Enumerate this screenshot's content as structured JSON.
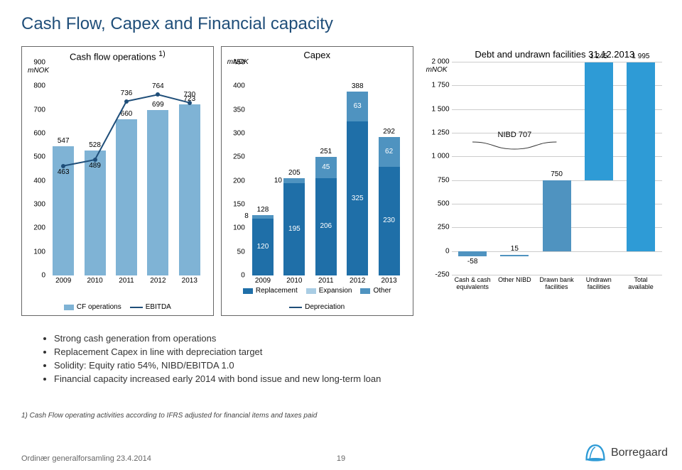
{
  "title": "Cash Flow, Capex and Financial capacity",
  "chart1": {
    "title": "Cash flow operations",
    "title_sup": "1)",
    "unit": "mNOK",
    "type": "bar+line",
    "ylim": [
      0,
      900
    ],
    "ytick_step": 100,
    "categories": [
      "2009",
      "2010",
      "2011",
      "2012",
      "2013"
    ],
    "bars": {
      "label": "CF operations",
      "color": "#7fb3d5",
      "values": [
        547,
        528,
        660,
        699,
        723
      ]
    },
    "line": {
      "label": "EBITDA",
      "color": "#1f4e79",
      "values": [
        463,
        489,
        736,
        764,
        730
      ]
    }
  },
  "chart2": {
    "title": "Capex",
    "unit": "mNOK",
    "type": "stacked-bar+line",
    "ylim": [
      0,
      450
    ],
    "ytick_step": 50,
    "categories": [
      "2009",
      "2010",
      "2011",
      "2012",
      "2013"
    ],
    "series": [
      {
        "label": "Replacement",
        "color": "#1f6fa8",
        "values": [
          120,
          195,
          206,
          325,
          230
        ]
      },
      {
        "label": "Other",
        "color": "#4f93c0",
        "values": [
          8,
          10,
          45,
          63,
          62
        ]
      },
      {
        "label": "Expansion",
        "color": "#a9cde4",
        "values": [
          0,
          0,
          0,
          0,
          0
        ]
      }
    ],
    "totals": [
      128,
      205,
      251,
      388,
      292
    ],
    "line": {
      "label": "Depreciation",
      "color": "#1f4e79"
    }
  },
  "chart3": {
    "title": "Debt and undrawn facilities 31.12.2013",
    "unit": "mNOK",
    "type": "waterfall",
    "ylim": [
      -250,
      2000
    ],
    "ytick_step": 250,
    "categories": [
      "Cash & cash equivalents",
      "Other NIBD",
      "Drawn bank facilities",
      "Undrawn facilities",
      "Total available"
    ],
    "bars": [
      {
        "value": -58,
        "color": "#4f93c0",
        "label": "-58"
      },
      {
        "value": 15,
        "color": "#4f93c0",
        "label": "15",
        "ypos": -58
      },
      {
        "value": 750,
        "color": "#4f93c0",
        "label": "750"
      },
      {
        "value": 1245,
        "color": "#2e9bd6",
        "label": "1 245",
        "ypos": 750
      },
      {
        "value": 1995,
        "color": "#2e9bd6",
        "label": "1 995"
      }
    ],
    "brace_label": "NIBD 707"
  },
  "bullets": [
    "Strong cash generation from operations",
    "Replacement Capex in line with depreciation target",
    "Solidity: Equity ratio 54%, NIBD/EBITDA 1.0",
    "Financial capacity increased early 2014 with bond issue  and new long-term loan"
  ],
  "footnote": "1) Cash Flow operating activities according to IFRS adjusted for financial items and taxes paid",
  "footer_left": "Ordinær generalforsamling 23.4.2014",
  "page_num": "19",
  "logo_text": "Borregaard",
  "colors": {
    "title": "#1f4e79",
    "grid": "#cccccc"
  }
}
